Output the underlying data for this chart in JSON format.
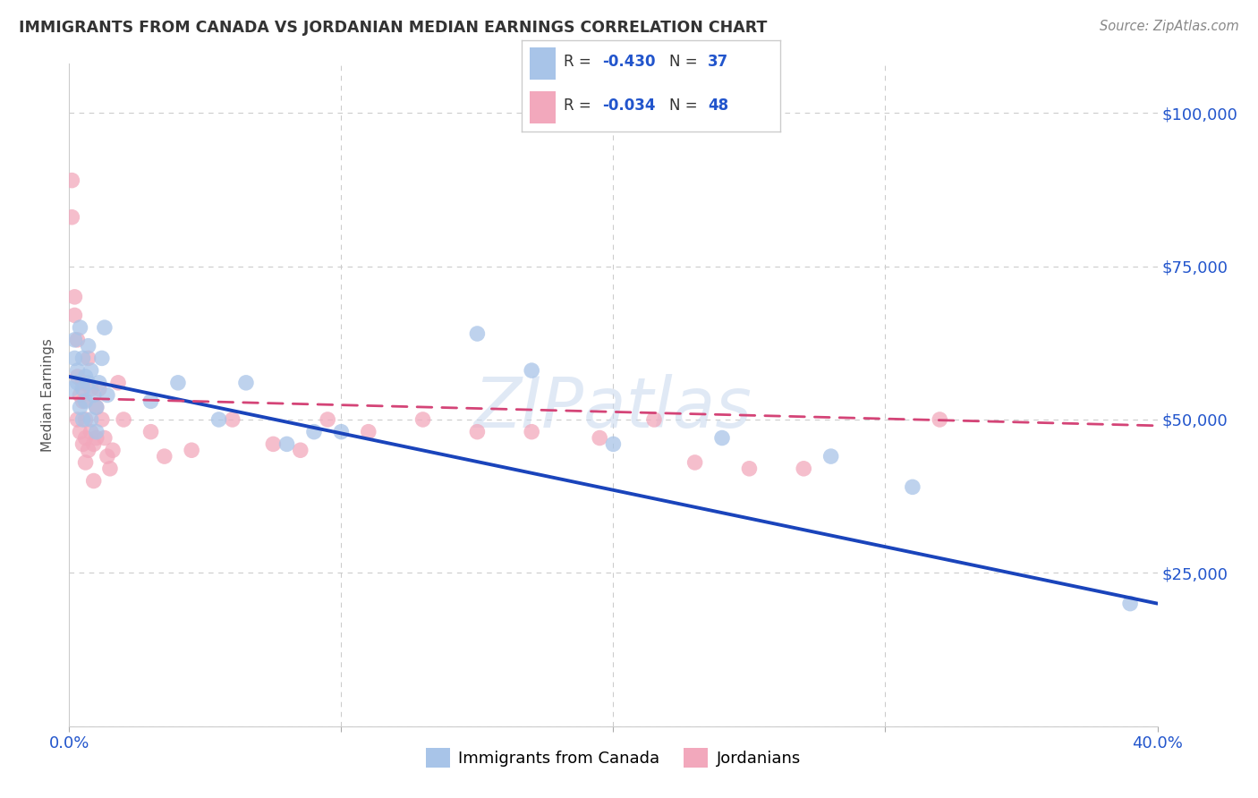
{
  "title": "IMMIGRANTS FROM CANADA VS JORDANIAN MEDIAN EARNINGS CORRELATION CHART",
  "source": "Source: ZipAtlas.com",
  "ylabel": "Median Earnings",
  "y_ticks": [
    0,
    25000,
    50000,
    75000,
    100000
  ],
  "y_tick_labels": [
    "",
    "$25,000",
    "$50,000",
    "$75,000",
    "$100,000"
  ],
  "x_min": 0.0,
  "x_max": 0.4,
  "y_min": 0,
  "y_max": 108000,
  "blue_R": -0.43,
  "blue_N": 37,
  "pink_R": -0.034,
  "pink_N": 48,
  "blue_color": "#a8c4e8",
  "pink_color": "#f2a8bc",
  "blue_line_color": "#1a44bb",
  "pink_line_color": "#d44477",
  "watermark": "ZIPatlas",
  "legend_label_blue": "Immigrants from Canada",
  "legend_label_pink": "Jordanians",
  "blue_scatter_x": [
    0.001,
    0.002,
    0.002,
    0.003,
    0.003,
    0.004,
    0.004,
    0.005,
    0.005,
    0.005,
    0.006,
    0.006,
    0.007,
    0.007,
    0.008,
    0.008,
    0.009,
    0.01,
    0.01,
    0.011,
    0.012,
    0.013,
    0.014,
    0.03,
    0.04,
    0.055,
    0.065,
    0.08,
    0.09,
    0.1,
    0.15,
    0.17,
    0.2,
    0.24,
    0.28,
    0.31,
    0.39
  ],
  "blue_scatter_y": [
    55000,
    60000,
    63000,
    58000,
    56000,
    65000,
    52000,
    60000,
    55000,
    50000,
    57000,
    53000,
    56000,
    62000,
    58000,
    50000,
    54000,
    52000,
    48000,
    56000,
    60000,
    65000,
    54000,
    53000,
    56000,
    50000,
    56000,
    46000,
    48000,
    48000,
    64000,
    58000,
    46000,
    47000,
    44000,
    39000,
    20000
  ],
  "pink_scatter_x": [
    0.001,
    0.001,
    0.002,
    0.002,
    0.003,
    0.003,
    0.003,
    0.004,
    0.004,
    0.005,
    0.005,
    0.005,
    0.006,
    0.006,
    0.006,
    0.007,
    0.007,
    0.008,
    0.008,
    0.009,
    0.009,
    0.01,
    0.01,
    0.011,
    0.012,
    0.013,
    0.014,
    0.015,
    0.016,
    0.018,
    0.02,
    0.03,
    0.035,
    0.045,
    0.06,
    0.075,
    0.085,
    0.095,
    0.11,
    0.13,
    0.15,
    0.17,
    0.195,
    0.215,
    0.23,
    0.25,
    0.27,
    0.32
  ],
  "pink_scatter_y": [
    83000,
    89000,
    70000,
    67000,
    63000,
    57000,
    50000,
    54000,
    48000,
    53000,
    46000,
    56000,
    50000,
    47000,
    43000,
    60000,
    45000,
    48000,
    55000,
    46000,
    40000,
    52000,
    47000,
    55000,
    50000,
    47000,
    44000,
    42000,
    45000,
    56000,
    50000,
    48000,
    44000,
    45000,
    50000,
    46000,
    45000,
    50000,
    48000,
    50000,
    48000,
    48000,
    47000,
    50000,
    43000,
    42000,
    42000,
    50000
  ],
  "blue_trendline_x": [
    0.0,
    0.4
  ],
  "blue_trendline_y": [
    57000,
    20000
  ],
  "pink_trendline_x": [
    0.0,
    0.4
  ],
  "pink_trendline_y": [
    53500,
    49000
  ],
  "background_color": "#ffffff",
  "grid_color": "#cccccc",
  "title_color": "#333333",
  "axis_label_color": "#2255cc"
}
